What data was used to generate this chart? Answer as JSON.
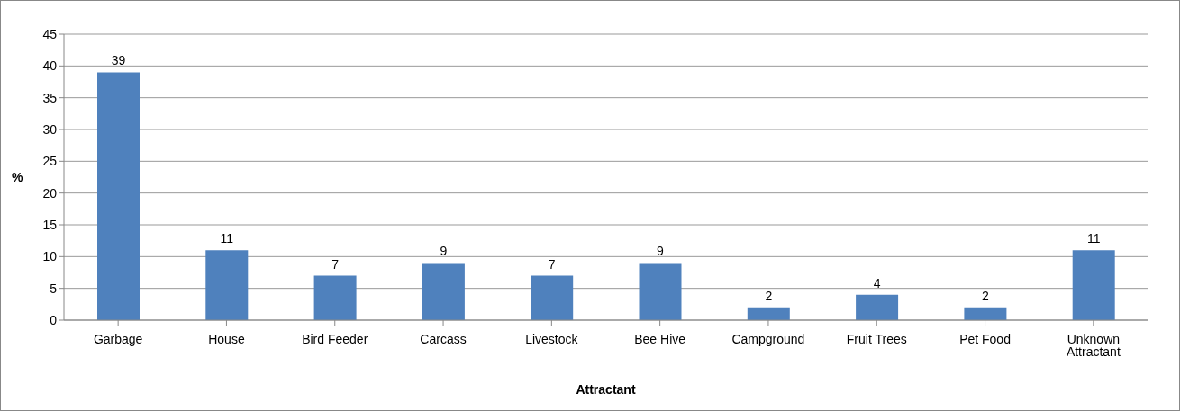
{
  "chart_data": {
    "type": "bar",
    "xlabel": "Attractant",
    "ylabel": "%",
    "categories": [
      "Garbage",
      "House",
      "Bird Feeder",
      "Carcass",
      "Livestock",
      "Bee Hive",
      "Campground",
      "Fruit Trees",
      "Pet Food",
      "Unknown Attractant"
    ],
    "values": [
      39,
      11,
      7,
      9,
      7,
      9,
      2,
      4,
      2,
      11
    ],
    "color": "#4f81bd",
    "data_labels": true,
    "ylim": [
      0,
      45
    ],
    "yticks": [
      0,
      5,
      10,
      15,
      20,
      25,
      30,
      35,
      40,
      45
    ],
    "grid": "y",
    "legend": false
  }
}
